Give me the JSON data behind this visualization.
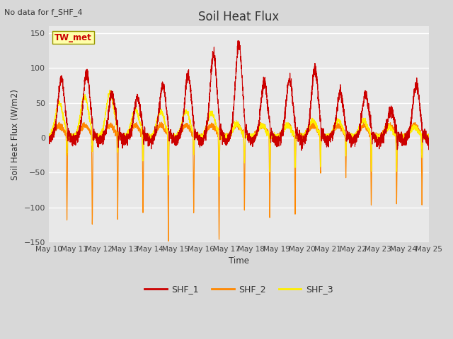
{
  "title": "Soil Heat Flux",
  "ylabel": "Soil Heat Flux (W/m2)",
  "xlabel": "Time",
  "note": "No data for f_SHF_4",
  "location_label": "TW_met",
  "ylim": [
    -150,
    160
  ],
  "yticks": [
    -150,
    -100,
    -50,
    0,
    50,
    100,
    150
  ],
  "xtick_labels": [
    "May 10",
    "May 11",
    "May 12",
    "May 13",
    "May 14",
    "May 15",
    "May 16",
    "May 17",
    "May 18",
    "May 19",
    "May 20",
    "May 21",
    "May 22",
    "May 23",
    "May 24",
    "May 25"
  ],
  "colors": {
    "SHF_1": "#cc0000",
    "SHF_2": "#ff8800",
    "SHF_3": "#ffee00",
    "fig_bg": "#d8d8d8",
    "plot_bg": "#e8e8e8",
    "grid": "#ffffff"
  },
  "legend_entries": [
    "SHF_1",
    "SHF_2",
    "SHF_3"
  ],
  "linewidth": 0.8,
  "n_days": 15,
  "pts_per_day": 288
}
